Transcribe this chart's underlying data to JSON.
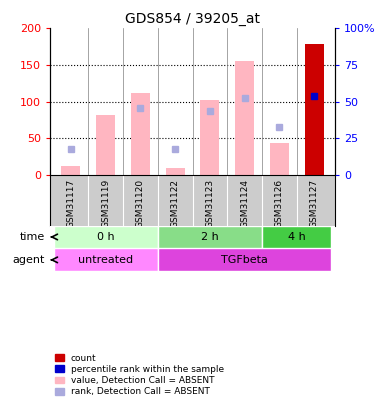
{
  "title": "GDS854 / 39205_at",
  "samples": [
    "GSM31117",
    "GSM31119",
    "GSM31120",
    "GSM31122",
    "GSM31123",
    "GSM31124",
    "GSM31126",
    "GSM31127"
  ],
  "bar_values_pink": [
    12,
    82,
    112,
    10,
    102,
    155,
    44,
    178
  ],
  "rank_blue_squares": [
    36,
    null,
    92,
    36,
    88,
    105,
    65,
    108
  ],
  "ylim": [
    0,
    200
  ],
  "y2lim": [
    0,
    100
  ],
  "yticks": [
    0,
    50,
    100,
    150,
    200
  ],
  "y2ticks": [
    0,
    25,
    50,
    75,
    100
  ],
  "ytick_labels": [
    "0",
    "50",
    "100",
    "150",
    "200"
  ],
  "y2tick_labels": [
    "0",
    "25",
    "50",
    "75",
    "100%"
  ],
  "color_pink": "#FFB6C1",
  "color_light_blue": "#AAAADD",
  "color_red": "#CC0000",
  "color_blue": "#0000CC",
  "time_groups": [
    {
      "label": "0 h",
      "start": 0,
      "end": 3,
      "color": "#CCFFCC"
    },
    {
      "label": "2 h",
      "start": 3,
      "end": 6,
      "color": "#88DD88"
    },
    {
      "label": "4 h",
      "start": 6,
      "end": 8,
      "color": "#44CC44"
    }
  ],
  "agent_groups": [
    {
      "label": "untreated",
      "start": 0,
      "end": 3,
      "color": "#FF88FF"
    },
    {
      "label": "TGFbeta",
      "start": 3,
      "end": 8,
      "color": "#DD44DD"
    }
  ],
  "bg_color": "#FFFFFF",
  "sample_bg": "#CCCCCC",
  "legend_items": [
    {
      "color": "#CC0000",
      "label": "count"
    },
    {
      "color": "#0000CC",
      "label": "percentile rank within the sample"
    },
    {
      "color": "#FFB6C1",
      "label": "value, Detection Call = ABSENT"
    },
    {
      "color": "#AAAADD",
      "label": "rank, Detection Call = ABSENT"
    }
  ]
}
